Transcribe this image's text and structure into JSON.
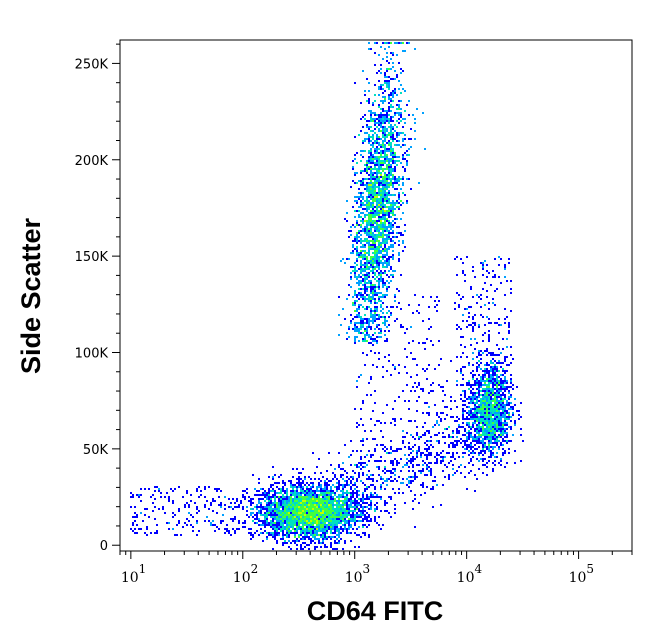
{
  "chart_data": {
    "type": "scatter",
    "subtype": "density-dot-plot",
    "xlabel": "CD64 FITC",
    "ylabel": "Side Scatter",
    "x_scale": "log",
    "y_scale": "linear",
    "xlim": [
      8,
      300000
    ],
    "ylim": [
      -3000,
      262144
    ],
    "x_ticks": [
      {
        "base": "10",
        "exp": "1",
        "value": 10
      },
      {
        "base": "10",
        "exp": "2",
        "value": 100
      },
      {
        "base": "10",
        "exp": "3",
        "value": 1000
      },
      {
        "base": "10",
        "exp": "4",
        "value": 10000
      },
      {
        "base": "10",
        "exp": "5",
        "value": 100000
      }
    ],
    "y_ticks": [
      {
        "label": "0",
        "value": 0
      },
      {
        "label": "50K",
        "value": 50000
      },
      {
        "label": "100K",
        "value": 100000
      },
      {
        "label": "150K",
        "value": 150000
      },
      {
        "label": "200K",
        "value": 200000
      },
      {
        "label": "250K",
        "value": 250000
      }
    ],
    "grid": false,
    "legend": "none",
    "density_colors": [
      "#0000ff",
      "#00a0ff",
      "#00e0c0",
      "#40ff40",
      "#c0ff00",
      "#ffff00",
      "#ffa000",
      "#ff2000"
    ],
    "populations": [
      {
        "x_center": 400,
        "x_log_sd": 0.22,
        "y_center": 17000,
        "y_sd": 7000,
        "events": 3500
      },
      {
        "x_center": 1600,
        "x_log_sd": 0.1,
        "y_center": 175000,
        "y_sd": 35000,
        "events": 4000
      },
      {
        "x_center": 16000,
        "x_log_sd": 0.1,
        "y_center": 70000,
        "y_sd": 12000,
        "events": 1500
      }
    ]
  }
}
